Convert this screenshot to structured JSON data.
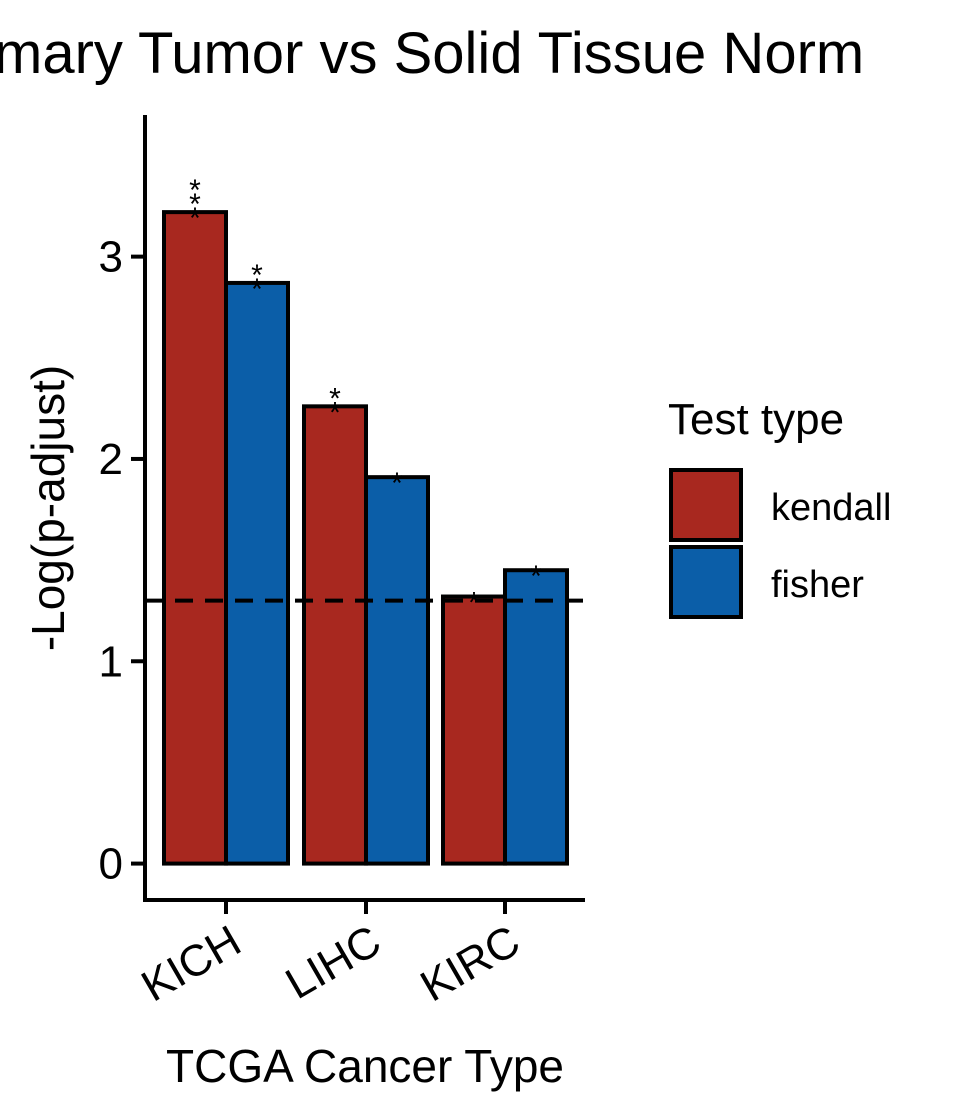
{
  "chart_data": {
    "type": "bar",
    "title": "mary Tumor vs Solid Tissue Norm",
    "xlabel": "TCGA Cancer Type",
    "ylabel": "-Log(p-adjust)",
    "categories": [
      "KICH",
      "LIHC",
      "KIRC"
    ],
    "series": [
      {
        "name": "kendall",
        "color": "#a8281f",
        "values": [
          3.22,
          2.26,
          1.32
        ],
        "significance": [
          "***",
          "**",
          "*"
        ]
      },
      {
        "name": "fisher",
        "color": "#0b5ea8",
        "values": [
          2.87,
          1.91,
          1.45
        ],
        "significance": [
          "**",
          "*",
          "*"
        ]
      }
    ],
    "yticks": [
      0,
      1,
      2,
      3
    ],
    "ylim": [
      -0.18,
      3.7
    ],
    "threshold": 1.3,
    "grid": false,
    "legend": {
      "title": "Test type",
      "position": "right"
    }
  }
}
